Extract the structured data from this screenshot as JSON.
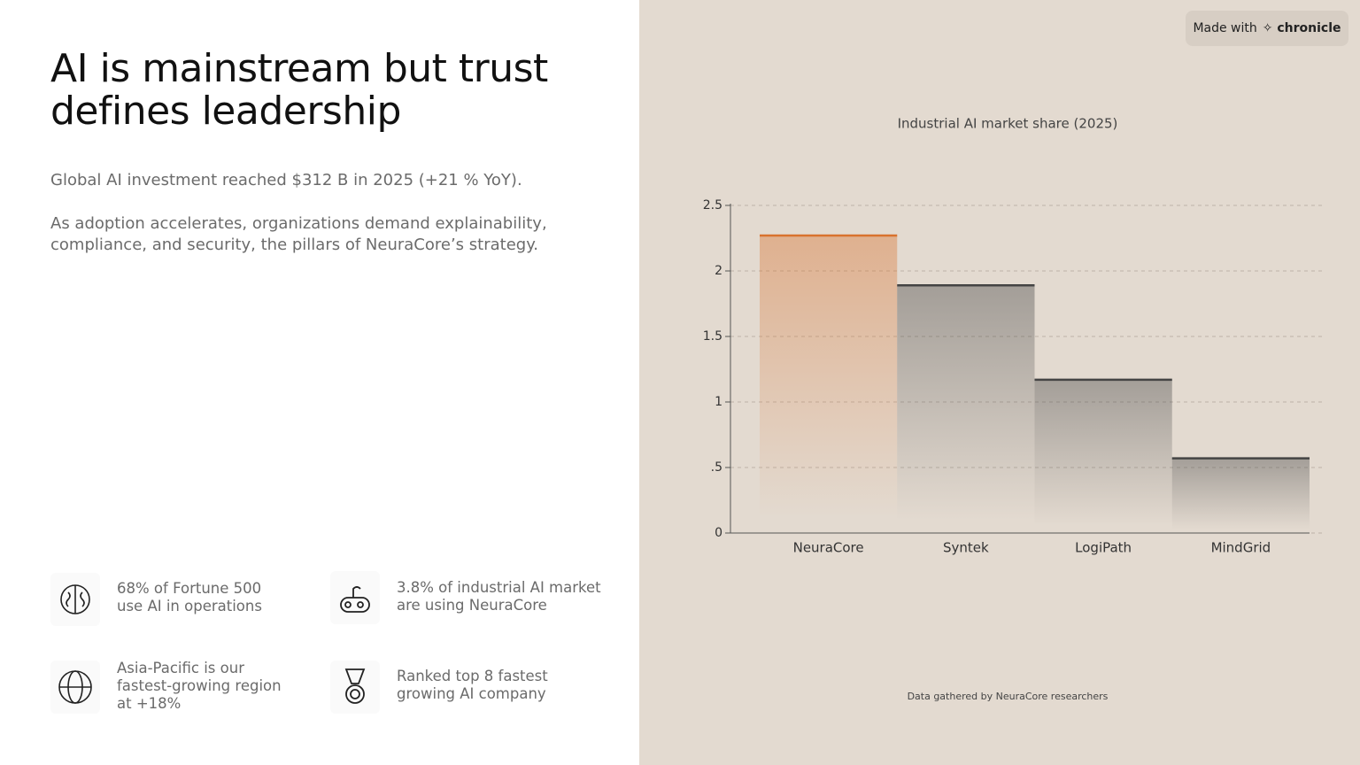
{
  "title_lines": [
    "AI is mainstream but trust",
    "defines leadership"
  ],
  "paragraphs": [
    [
      "Global AI investment reached $312 B in 2025 (+21 % YoY)."
    ],
    [
      "As adoption accelerates, organizations demand explainability,",
      "compliance, and security, the pillars of NeuraCore’s strategy."
    ]
  ],
  "stats": [
    [
      "68% of Fortune 500",
      "use AI in operations"
    ],
    [
      "3.8% of industrial AI market",
      "are using NeuraCore"
    ],
    [
      "Asia-Pacific is our",
      "fastest-growing region",
      "at +18%"
    ],
    [
      "Ranked top 8 fastest",
      "growing AI company"
    ]
  ],
  "badge": {
    "prefix": "Made with",
    "brand": "chronicle"
  },
  "chart_data": {
    "type": "bar",
    "title": "Industrial AI market share (2025)",
    "categories": [
      "NeuraCore",
      "Syntek",
      "LogiPath",
      "MindGrid"
    ],
    "values": [
      2.27,
      1.89,
      1.17,
      0.57
    ],
    "colors": [
      "#d9722e",
      "#444444",
      "#444444",
      "#444444"
    ],
    "ylim": [
      0,
      2.5
    ],
    "yticks": [
      0,
      {
        "value": 0.5,
        "label": ".5"
      },
      1,
      1.5,
      2,
      2.5
    ],
    "grid": true,
    "source": "Data gathered by NeuraCore researchers"
  }
}
